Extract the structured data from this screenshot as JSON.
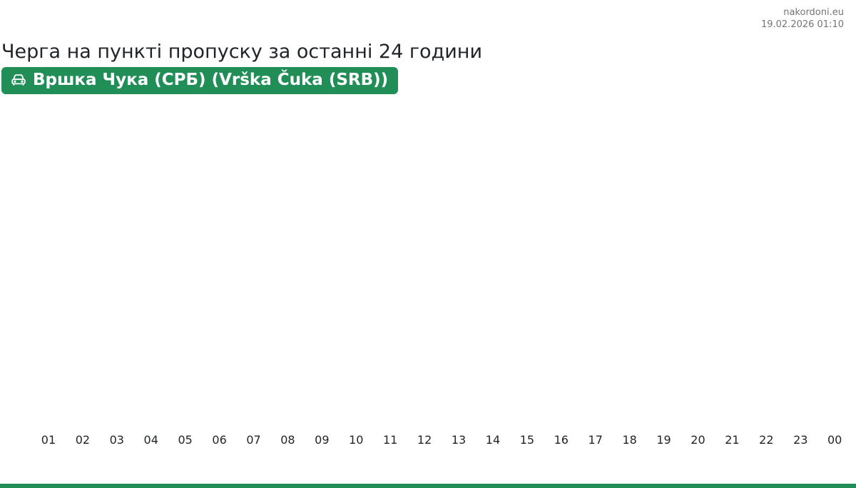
{
  "site": {
    "name": "nakordoni.eu",
    "timestamp": "19.02.2026 01:10"
  },
  "page": {
    "title": "Черга на пункті пропуску за останні 24 години"
  },
  "checkpoint": {
    "label": "Вршка Чука (СРБ) (Vrška Čuka (SRB))",
    "icon": "car-front-icon"
  },
  "colors": {
    "accent_green": "#218e58",
    "text_dark": "#212529",
    "text_muted": "#757575",
    "badge_text": "#ffffff"
  },
  "chart_data": {
    "type": "bar",
    "title": "Черга на пункті пропуску за останні 24 години",
    "subtitle": "Вршка Чука (СРБ) (Vrška Čuka (SRB))",
    "categories": [
      "01",
      "02",
      "03",
      "04",
      "05",
      "06",
      "07",
      "08",
      "09",
      "10",
      "11",
      "12",
      "13",
      "14",
      "15",
      "16",
      "17",
      "18",
      "19",
      "20",
      "21",
      "22",
      "23",
      "00"
    ],
    "values": [
      0,
      0,
      0,
      0,
      0,
      0,
      0,
      0,
      0,
      0,
      0,
      0,
      0,
      0,
      0,
      0,
      0,
      0,
      0,
      0,
      0,
      0,
      0,
      0
    ],
    "xlabel": "",
    "ylabel": "",
    "ylim": [
      0,
      1
    ],
    "grid": false,
    "legend": false,
    "bar_color": "#218e58"
  }
}
